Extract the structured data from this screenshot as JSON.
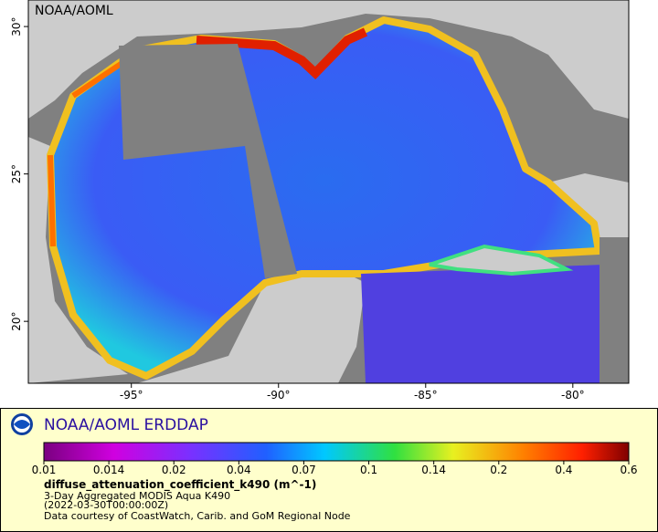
{
  "map": {
    "label": "NOAA/AOML",
    "xlim": [
      -98.5,
      -78.1
    ],
    "ylim": [
      17.9,
      30.9
    ],
    "xticks": [
      {
        "value": -95,
        "label": "-95°"
      },
      {
        "value": -90,
        "label": "-90°"
      },
      {
        "value": -85,
        "label": "-85°"
      },
      {
        "value": -80,
        "label": "-80°"
      }
    ],
    "yticks": [
      {
        "value": 20,
        "label": "20°"
      },
      {
        "value": 25,
        "label": "25°"
      },
      {
        "value": 30,
        "label": "30°"
      }
    ]
  },
  "legend": {
    "title": "NOAA/AOML ERDDAP",
    "colorbar": {
      "ticks": [
        0.01,
        0.014,
        0.02,
        0.04,
        0.07,
        0.1,
        0.14,
        0.2,
        0.4,
        0.6
      ]
    },
    "variable": "diffuse_attenuation_coefficient_k490 (m^-1)",
    "lines": [
      "3-Day Aggregated MODIS Aqua K490",
      "(2022-03-30T00:00:00Z)",
      "Data courtesy of CoastWatch, Carib. and GoM Regional Node"
    ]
  }
}
